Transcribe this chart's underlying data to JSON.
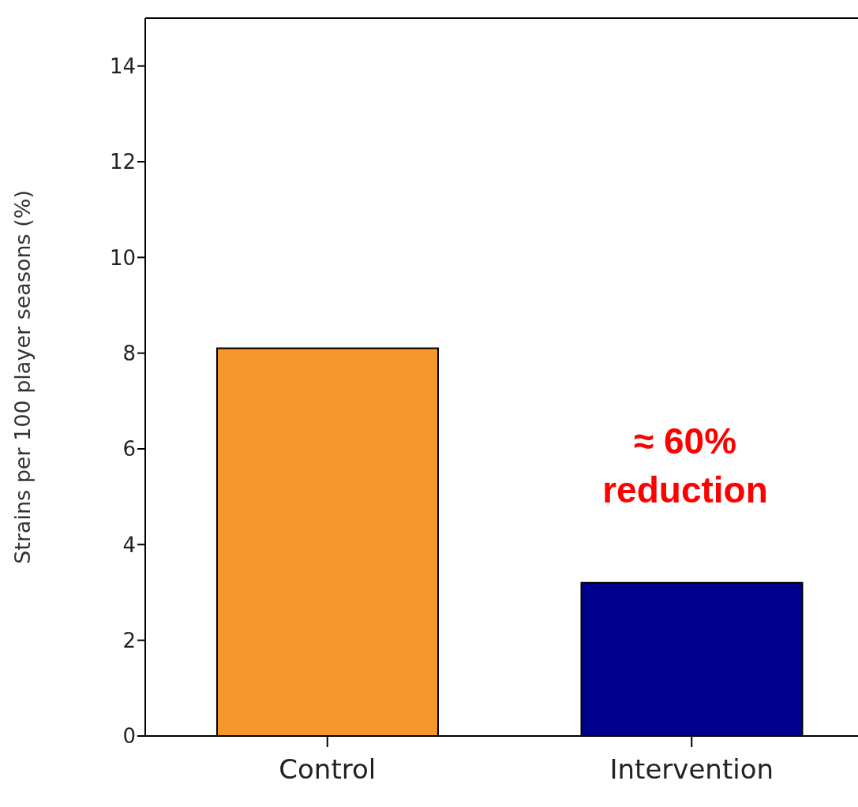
{
  "chart_data": {
    "type": "bar",
    "ylabel": "Strains per 100 player seasons (%)",
    "categories": [
      "Control",
      "Intervention"
    ],
    "values": [
      8.1,
      3.2
    ],
    "colors": [
      "#f7962a",
      "#00008f"
    ],
    "ylim": [
      0,
      15
    ],
    "yticks": [
      0,
      2,
      4,
      6,
      8,
      10,
      12,
      14
    ],
    "grid": false,
    "annotations": [
      "≈  60%\nreduction"
    ]
  }
}
